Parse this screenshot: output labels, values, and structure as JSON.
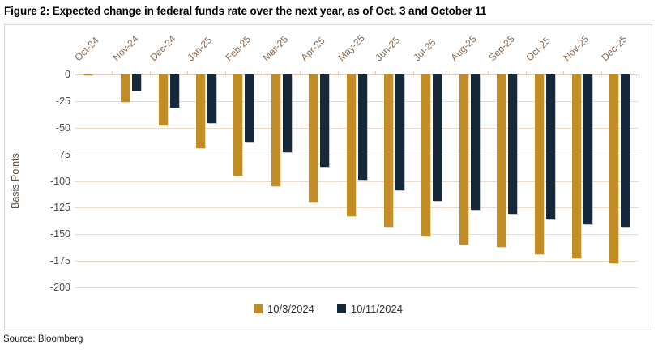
{
  "title": "Figure 2: Expected change in federal funds rate over the next year, as of Oct. 3 and October 11",
  "source": "Source: Bloomberg",
  "chart_data": {
    "type": "bar",
    "title": "Expected change in federal funds rate over the next year",
    "categories": [
      "Oct-24",
      "Nov-24",
      "Dec-24",
      "Jan-25",
      "Feb-25",
      "Mar-25",
      "Apr-25",
      "May-25",
      "Jun-25",
      "Jul-25",
      "Aug-25",
      "Sep-25",
      "Oct-25",
      "Nov-25",
      "Dec-25"
    ],
    "series": [
      {
        "name": "10/3/2024",
        "color": "#c28d26",
        "values": [
          -1,
          -26,
          -48,
          -69,
          -95,
          -105,
          -120,
          -133,
          -143,
          -152,
          -160,
          -162,
          -169,
          -173,
          -177
        ]
      },
      {
        "name": "10/11/2024",
        "color": "#15293a",
        "values": [
          0,
          -15,
          -31,
          -46,
          -64,
          -73,
          -87,
          -99,
          -109,
          -119,
          -127,
          -131,
          -136,
          -141,
          -143
        ]
      }
    ],
    "xlabel": "",
    "ylabel": "Basis Points",
    "ylim": [
      -200,
      0
    ],
    "ytick_step": 25,
    "yticks": [
      0,
      -25,
      -50,
      -75,
      -100,
      -125,
      -150,
      -175,
      -200
    ],
    "grid": true,
    "legend_position": "bottom",
    "bar_orientation": "vertical",
    "axis_label_rotation_deg": 45
  }
}
